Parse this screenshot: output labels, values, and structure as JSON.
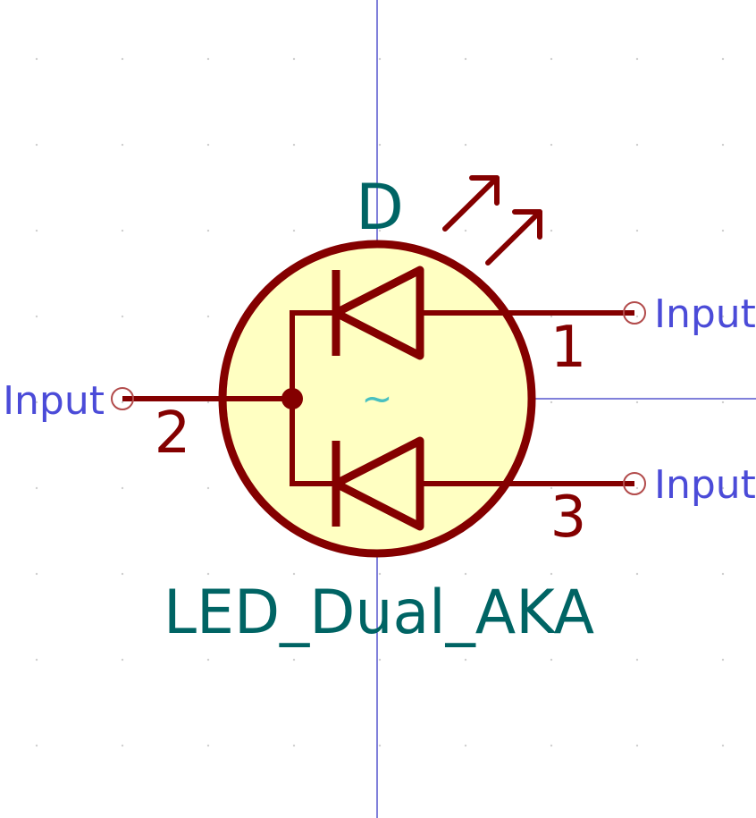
{
  "symbol": {
    "reference": "D",
    "value": "LED_Dual_AKA",
    "unit_marker": "~"
  },
  "pins": [
    {
      "number": "1",
      "electrical_type": "Input"
    },
    {
      "number": "2",
      "electrical_type": "Input"
    },
    {
      "number": "3",
      "electrical_type": "Input"
    }
  ],
  "colors": {
    "body_outline": "#840000",
    "body_fill": "#FFFFC2",
    "pin_line": "#840000",
    "reference_text": "#006464",
    "value_text": "#006464",
    "pin_name_text": "#4B4BD8",
    "pin_marker": "#B24B4B",
    "unit_marker": "#48C0C0",
    "axis": "#0000B4",
    "grid_dot": "#D0D0D0"
  }
}
